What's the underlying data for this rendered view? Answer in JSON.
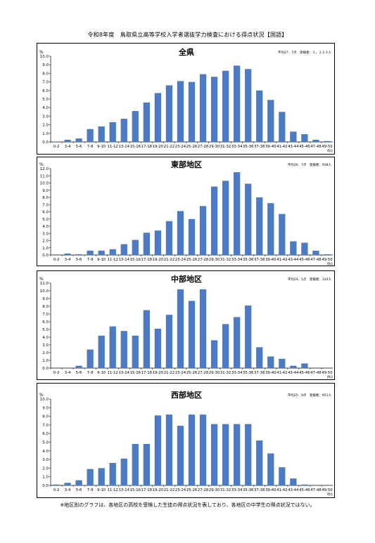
{
  "page_title": "令和8年度　鳥取県立高等学校入学者選抜学力検査における得点状況【国語】",
  "footnote": "※地区別のグラフは、各地区の高校を受検した生徒の得点状況を表しており、各地区の中学生の得点状況ではない。",
  "bar_color": "#4e7ac0",
  "chart_data": [
    {
      "type": "bar",
      "title": "全県",
      "stats": "平均27．7点　受検者：２，２２３人",
      "ylabel": "%",
      "xlabel": "得点",
      "ylim": [
        0,
        10
      ],
      "yticks": [
        "0.0",
        "1.0",
        "2.0",
        "3.0",
        "4.0",
        "5.0",
        "6.0",
        "7.0",
        "8.0",
        "9.0",
        "10.0"
      ],
      "categories": [
        "0-2",
        "3-4",
        "5-6",
        "7-8",
        "9-10",
        "11-12",
        "13-14",
        "15-16",
        "17-18",
        "19-20",
        "21-22",
        "23-24",
        "25-26",
        "27-28",
        "29-30",
        "31-32",
        "33-34",
        "35-36",
        "37-38",
        "39-40",
        "41-42",
        "43-44",
        "45-46",
        "47-48",
        "49-50"
      ],
      "values": [
        0.05,
        0.25,
        0.4,
        1.5,
        1.8,
        2.3,
        2.7,
        3.6,
        4.6,
        5.7,
        6.6,
        7.1,
        7.0,
        7.9,
        7.6,
        8.3,
        8.9,
        8.5,
        6.0,
        4.9,
        3.5,
        1.2,
        0.9,
        0.25,
        0.1
      ]
    },
    {
      "type": "bar",
      "title": "東部地区",
      "stats": "平均30．7点　受検者：938人",
      "ylabel": "%",
      "xlabel": "得点",
      "ylim": [
        0,
        12
      ],
      "yticks": [
        "0.0",
        "1.0",
        "2.0",
        "3.0",
        "4.0",
        "5.0",
        "6.0",
        "7.0",
        "8.0",
        "9.0",
        "10.0",
        "11.0",
        "12.0"
      ],
      "categories": [
        "0-2",
        "3-4",
        "5-6",
        "7-8",
        "9-10",
        "11-12",
        "13-14",
        "15-16",
        "17-18",
        "19-20",
        "21-22",
        "23-24",
        "25-26",
        "27-28",
        "29-30",
        "31-32",
        "33-34",
        "35-36",
        "37-38",
        "39-40",
        "41-42",
        "43-44",
        "45-46",
        "47-48",
        "49-50"
      ],
      "values": [
        0.0,
        0.2,
        0.1,
        0.6,
        0.6,
        0.8,
        1.5,
        2.1,
        3.1,
        3.4,
        4.7,
        6.1,
        5.0,
        6.8,
        9.5,
        10.3,
        11.5,
        9.9,
        8.0,
        7.2,
        5.7,
        1.9,
        1.7,
        0.6,
        0.1
      ]
    },
    {
      "type": "bar",
      "title": "中部地区",
      "stats": "平均24．1点　受検者：334人",
      "ylabel": "%",
      "xlabel": "得点",
      "ylim": [
        0,
        11
      ],
      "yticks": [
        "0.0",
        "1.0",
        "2.0",
        "3.0",
        "4.0",
        "5.0",
        "6.0",
        "7.0",
        "8.0",
        "9.0",
        "10.0",
        "11.0"
      ],
      "categories": [
        "0-2",
        "3-4",
        "5-6",
        "7-8",
        "9-10",
        "11-12",
        "13-14",
        "15-16",
        "17-18",
        "19-20",
        "21-22",
        "23-24",
        "25-26",
        "27-28",
        "29-30",
        "31-32",
        "33-34",
        "35-36",
        "37-38",
        "39-40",
        "41-42",
        "43-44",
        "45-46",
        "47-48",
        "49-50"
      ],
      "values": [
        0.0,
        0.0,
        0.3,
        2.4,
        4.2,
        5.4,
        4.8,
        4.2,
        7.5,
        5.1,
        6.9,
        10.2,
        8.7,
        10.2,
        3.6,
        5.7,
        6.6,
        8.1,
        2.7,
        1.5,
        1.2,
        0.3,
        0.6,
        0.0,
        0.0
      ]
    },
    {
      "type": "bar",
      "title": "西部地区",
      "stats": "平均25．9点　受検者：951人",
      "ylabel": "%",
      "xlabel": "得点",
      "ylim": [
        0,
        10
      ],
      "yticks": [
        "0.0",
        "1.0",
        "2.0",
        "3.0",
        "4.0",
        "5.0",
        "6.0",
        "7.0",
        "8.0",
        "9.0",
        "10.0"
      ],
      "categories": [
        "0-2",
        "3-4",
        "5-6",
        "7-8",
        "9-10",
        "11-12",
        "13-14",
        "15-16",
        "17-18",
        "19-20",
        "21-22",
        "23-24",
        "25-26",
        "27-28",
        "29-30",
        "31-32",
        "33-34",
        "35-36",
        "37-38",
        "39-40",
        "41-42",
        "43-44",
        "45-46",
        "47-48",
        "49-50"
      ],
      "values": [
        0.1,
        0.3,
        0.6,
        1.9,
        2.0,
        2.6,
        3.1,
        4.8,
        4.8,
        8.1,
        8.2,
        6.9,
        8.2,
        8.2,
        7.1,
        7.1,
        7.1,
        7.1,
        5.2,
        3.7,
        2.1,
        0.8,
        0.1,
        0.0,
        0.0
      ]
    }
  ]
}
